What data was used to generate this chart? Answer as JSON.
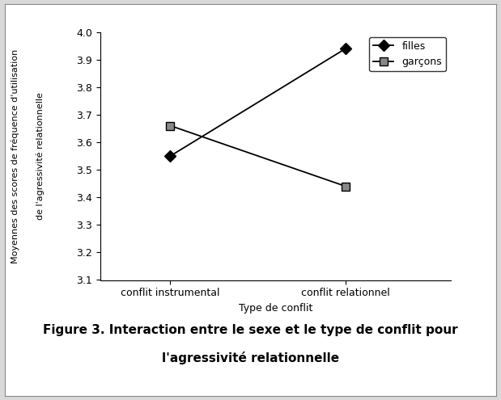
{
  "x_labels": [
    "conflit instrumental",
    "conflit relationnel"
  ],
  "x_positions": [
    1,
    2
  ],
  "filles_values": [
    3.55,
    3.94
  ],
  "garcons_values": [
    3.66,
    3.44
  ],
  "filles_marker": "D",
  "garcons_marker": "s",
  "line_color": "#000000",
  "ylim": [
    3.1,
    4.0
  ],
  "yticks": [
    3.1,
    3.2,
    3.3,
    3.4,
    3.5,
    3.6,
    3.7,
    3.8,
    3.9,
    4.0
  ],
  "xlabel": "Type de conflit",
  "ylabel_line1": "Moyennes des scores de fréquence d'utilisation",
  "ylabel_line2": "de l'agressivité relationnelle",
  "legend_filles": "filles",
  "legend_garcons": "garçons",
  "caption_line1": "Figure 3. Interaction entre le sexe et le type de conflit pour",
  "caption_line2": "l'agressivité relationnelle",
  "fig_bg_color": "#d9d9d9",
  "plot_bg_color": "#ffffff",
  "xlabel_fontsize": 9,
  "ylabel_fontsize": 8,
  "tick_fontsize": 9,
  "legend_fontsize": 9,
  "caption_fontsize": 11
}
